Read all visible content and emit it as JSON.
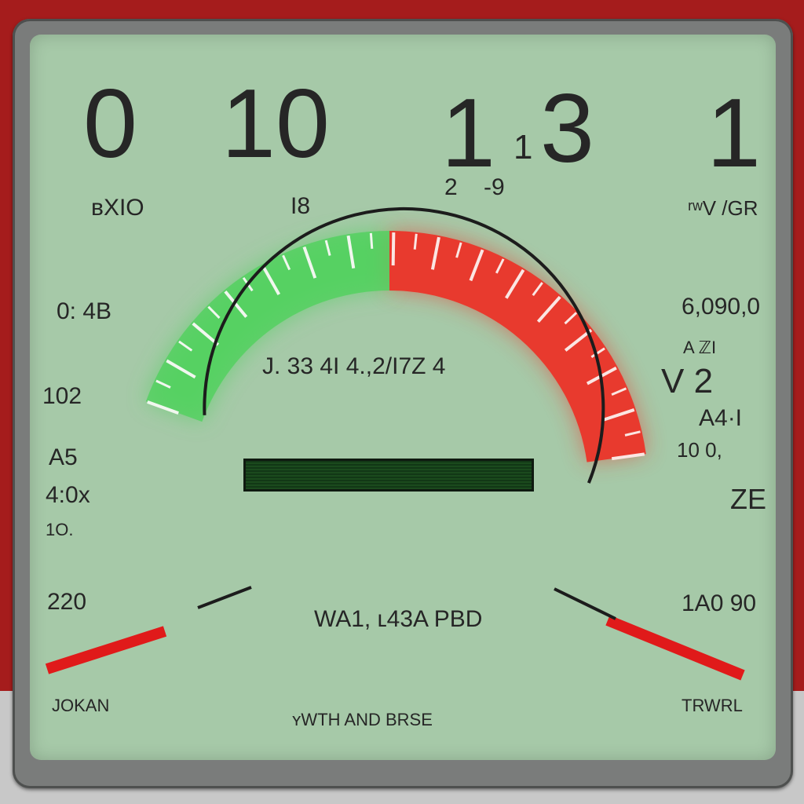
{
  "top_readouts": [
    "0",
    "10",
    "1",
    "1",
    "3",
    "1"
  ],
  "top_sub": {
    "left": "ʙXIO",
    "center": "I8",
    "minor_a": "2",
    "minor_b": "-9",
    "right": "ʳʷV /GR"
  },
  "left_column": [
    "0: 4B",
    "102",
    "A5",
    "4:0x",
    "1O.",
    "220"
  ],
  "right_column": [
    "6,090,0",
    "A  ℤI",
    "V 2",
    "A4·I",
    "10  0,",
    "ZE",
    "1A0 90"
  ],
  "gauge": {
    "center_text": "J.  33 4I  4.,2/I7Z  4",
    "lower_text": "WA1, ʟ43A PBD",
    "green_color": "#4cd25a",
    "red_color": "#e83a2e",
    "bar_level": 1.0
  },
  "footer": {
    "left": "JOKAN",
    "center": "ʏWTH AND BRSE",
    "right": "TRWRL"
  }
}
